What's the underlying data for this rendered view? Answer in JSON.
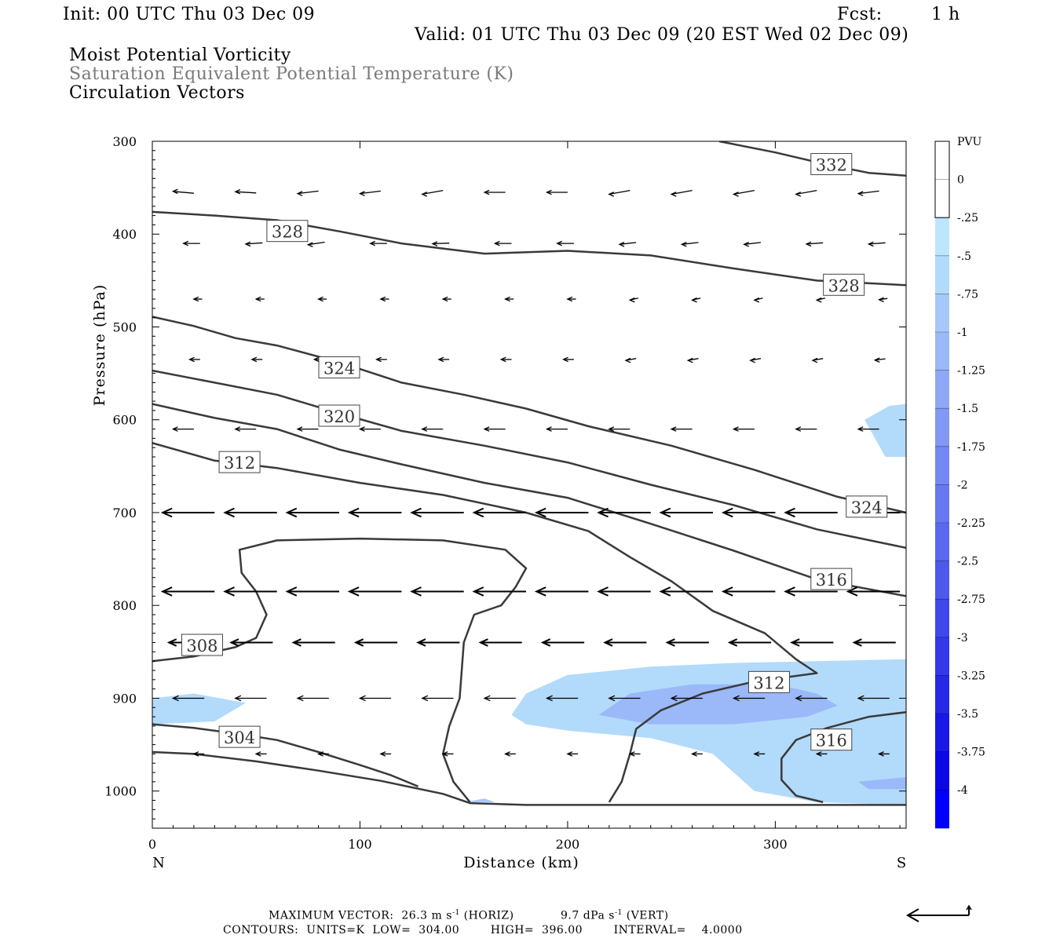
{
  "header": {
    "init": "Init: 00 UTC Thu 03 Dec 09",
    "fcst_label": "Fcst:",
    "fcst_value": "1 h",
    "valid": "Valid: 01 UTC Thu 03 Dec 09 (20 EST Wed 02 Dec 09)",
    "field1": "Moist Potential Vorticity",
    "field2": "Saturation Equivalent Potential Temperature (K)",
    "field3": "Circulation Vectors"
  },
  "footer": {
    "max_vector_label": "MAXIMUM VECTOR:",
    "horiz_value": "26.3 m s",
    "horiz_unit": "(HORIZ)",
    "vert_value": "9.7 dPa s",
    "vert_unit": "(VERT)",
    "exponent": "-1",
    "contours_line": "CONTOURS:  UNITS=K  LOW=  304.00        HIGH=  396.00        INTERVAL=    4.0000"
  },
  "colors": {
    "contour": "#3a3a3a",
    "vector": "#000000",
    "mpv_light": "#bde6fc",
    "mpv_medium": "#a6c8fa"
  },
  "chart_data": {
    "type": "contour",
    "xlabel": "Distance (km)",
    "ylabel": "Pressure (hPa)",
    "xlim": [
      0,
      363
    ],
    "ylim": [
      300,
      1040
    ],
    "y_log": false,
    "x_ticks": [
      0,
      100,
      200,
      300
    ],
    "y_ticks": [
      300,
      400,
      500,
      600,
      700,
      800,
      900,
      1000
    ],
    "x_end_labels": {
      "left": "N",
      "right": "S"
    },
    "colorbar": {
      "unit": "PVU",
      "levels": [
        "0",
        "-.25",
        "-.5",
        "-.75",
        "-1",
        "-1.25",
        "-1.5",
        "-1.75",
        "-2",
        "-2.25",
        "-2.5",
        "-2.75",
        "-3",
        "-3.25",
        "-3.5",
        "-3.75",
        "-4"
      ],
      "colors": [
        "#ffffff",
        "#ffffff",
        "#bde6fc",
        "#b2dafb",
        "#a6c8fa",
        "#9bb8f8",
        "#8ea8f6",
        "#8198f4",
        "#7488f2",
        "#6778f0",
        "#5a68ef",
        "#4d58ed",
        "#4048eb",
        "#3338e9",
        "#2628e8",
        "#1918e6",
        "#0c08e4",
        "#0000ff"
      ]
    },
    "contours": [
      {
        "value": "332",
        "label_at": [
          327,
          325
        ],
        "points": [
          [
            273,
            300
          ],
          [
            300,
            312
          ],
          [
            325,
            325
          ],
          [
            345,
            334
          ],
          [
            363,
            337
          ]
        ]
      },
      {
        "value": "328",
        "label_at": [
          65,
          397
        ],
        "points": [
          [
            0,
            376
          ],
          [
            30,
            380
          ],
          [
            60,
            385
          ],
          [
            90,
            397
          ],
          [
            120,
            410
          ],
          [
            160,
            421
          ],
          [
            200,
            418
          ],
          [
            240,
            423
          ],
          [
            280,
            437
          ],
          [
            320,
            450
          ],
          [
            363,
            455
          ]
        ]
      },
      {
        "value": "328",
        "label_at": [
          333,
          455
        ],
        "points": []
      },
      {
        "value": "324",
        "label_at": [
          90,
          544
        ],
        "points": [
          [
            0,
            489
          ],
          [
            20,
            499
          ],
          [
            40,
            512
          ],
          [
            60,
            520
          ],
          [
            90,
            538
          ],
          [
            120,
            560
          ],
          [
            150,
            573
          ],
          [
            180,
            588
          ],
          [
            210,
            607
          ],
          [
            250,
            628
          ],
          [
            290,
            654
          ],
          [
            330,
            683
          ],
          [
            363,
            700
          ]
        ]
      },
      {
        "value": "324",
        "label_at": [
          344,
          694
        ],
        "points": []
      },
      {
        "value": "320",
        "label_at": [
          90,
          596
        ],
        "points": [
          [
            0,
            547
          ],
          [
            30,
            560
          ],
          [
            60,
            573
          ],
          [
            90,
            593
          ],
          [
            120,
            612
          ],
          [
            160,
            628
          ],
          [
            200,
            646
          ],
          [
            240,
            670
          ],
          [
            280,
            692
          ],
          [
            320,
            718
          ],
          [
            363,
            738
          ]
        ]
      },
      {
        "value": "316",
        "label_at": [
          327,
          772
        ],
        "points": [
          [
            0,
            583
          ],
          [
            30,
            598
          ],
          [
            60,
            610
          ],
          [
            90,
            632
          ],
          [
            120,
            648
          ],
          [
            160,
            668
          ],
          [
            200,
            684
          ],
          [
            240,
            712
          ],
          [
            280,
            741
          ],
          [
            320,
            772
          ],
          [
            363,
            790
          ]
        ]
      },
      {
        "value": "312",
        "label_at": [
          42,
          646
        ],
        "points": [
          [
            0,
            625
          ],
          [
            30,
            644
          ],
          [
            60,
            652
          ],
          [
            100,
            668
          ],
          [
            140,
            681
          ],
          [
            180,
            700
          ],
          [
            210,
            720
          ],
          [
            230,
            748
          ],
          [
            250,
            774
          ],
          [
            270,
            806
          ],
          [
            295,
            830
          ],
          [
            310,
            858
          ],
          [
            320,
            873
          ],
          [
            290,
            882
          ],
          [
            265,
            895
          ],
          [
            245,
            913
          ],
          [
            233,
            933
          ],
          [
            230,
            960
          ],
          [
            226,
            990
          ],
          [
            220,
            1012
          ]
        ]
      },
      {
        "value": "312",
        "label_at": [
          297,
          883
        ],
        "points": []
      },
      {
        "value": "316",
        "label_at": [
          327,
          945
        ],
        "points": [
          [
            363,
            915
          ],
          [
            345,
            920
          ],
          [
            325,
            932
          ],
          [
            310,
            945
          ],
          [
            303,
            965
          ],
          [
            303,
            988
          ],
          [
            310,
            1005
          ],
          [
            323,
            1012
          ]
        ]
      },
      {
        "value": "308",
        "label_at": [
          24,
          843
        ],
        "points": [
          [
            0,
            860
          ],
          [
            20,
            855
          ],
          [
            40,
            845
          ],
          [
            50,
            835
          ],
          [
            55,
            810
          ],
          [
            50,
            785
          ],
          [
            43,
            765
          ],
          [
            42,
            740
          ],
          [
            60,
            730
          ],
          [
            100,
            728
          ],
          [
            140,
            730
          ],
          [
            170,
            740
          ],
          [
            180,
            760
          ],
          [
            175,
            780
          ],
          [
            168,
            800
          ],
          [
            155,
            810
          ],
          [
            150,
            840
          ],
          [
            148,
            900
          ],
          [
            143,
            930
          ],
          [
            140,
            960
          ],
          [
            145,
            990
          ],
          [
            153,
            1012
          ]
        ]
      },
      {
        "value": "304",
        "label_at": [
          42,
          942
        ],
        "points": [
          [
            0,
            928
          ],
          [
            20,
            932
          ],
          [
            40,
            938
          ],
          [
            60,
            945
          ],
          [
            80,
            958
          ],
          [
            100,
            972
          ],
          [
            115,
            983
          ],
          [
            128,
            995
          ]
        ]
      },
      {
        "value": "",
        "label_at": null,
        "points": [
          [
            0,
            958
          ],
          [
            20,
            960
          ],
          [
            50,
            968
          ],
          [
            80,
            978
          ],
          [
            110,
            989
          ],
          [
            140,
            1003
          ],
          [
            153,
            1013
          ],
          [
            180,
            1015
          ],
          [
            220,
            1015
          ],
          [
            280,
            1015
          ],
          [
            363,
            1015
          ]
        ]
      }
    ],
    "mpv_shading": [
      {
        "level": "-.5",
        "points": [
          [
            0,
            900
          ],
          [
            20,
            895
          ],
          [
            45,
            905
          ],
          [
            30,
            925
          ],
          [
            0,
            928
          ]
        ]
      },
      {
        "level": "-.5",
        "points": [
          [
            173,
            918
          ],
          [
            180,
            895
          ],
          [
            200,
            875
          ],
          [
            240,
            866
          ],
          [
            280,
            862
          ],
          [
            320,
            860
          ],
          [
            363,
            858
          ],
          [
            363,
            1015
          ],
          [
            320,
            1012
          ],
          [
            290,
            1000
          ],
          [
            270,
            960
          ],
          [
            240,
            943
          ],
          [
            200,
            935
          ],
          [
            180,
            928
          ]
        ]
      },
      {
        "level": "-1",
        "points": [
          [
            215,
            918
          ],
          [
            230,
            895
          ],
          [
            260,
            885
          ],
          [
            300,
            885
          ],
          [
            320,
            895
          ],
          [
            330,
            908
          ],
          [
            315,
            920
          ],
          [
            280,
            928
          ],
          [
            240,
            928
          ]
        ]
      },
      {
        "level": "-.5",
        "points": [
          [
            343,
            600
          ],
          [
            355,
            585
          ],
          [
            363,
            583
          ],
          [
            363,
            640
          ],
          [
            353,
            640
          ]
        ]
      },
      {
        "level": "-1",
        "points": [
          [
            340,
            990
          ],
          [
            363,
            985
          ],
          [
            363,
            998
          ],
          [
            345,
            998
          ]
        ]
      },
      {
        "level": "-.75",
        "points": [
          [
            150,
            1012
          ],
          [
            160,
            1008
          ],
          [
            165,
            1012
          ]
        ]
      }
    ],
    "vectors": [
      {
        "p": 355,
        "dx": -10,
        "xs": [
          10,
          40,
          70,
          100,
          130,
          160,
          190,
          220,
          250,
          280,
          310,
          340
        ],
        "slope": [
          -0.3,
          -0.2,
          0.4,
          0.4,
          0.6,
          0.0,
          0.0,
          0.6,
          0.6,
          0.6,
          0.6,
          0.4
        ]
      },
      {
        "p": 410,
        "dx": -8,
        "xs": [
          15,
          45,
          75,
          105,
          135,
          165,
          195,
          225,
          255,
          285,
          315,
          345
        ],
        "slope": [
          0.0,
          0.2,
          0.4,
          0.0,
          0.1,
          0.0,
          0.0,
          0.3,
          0.3,
          0.3,
          0.2,
          0.2
        ]
      },
      {
        "p": 470,
        "dx": -4,
        "xs": [
          20,
          50,
          80,
          110,
          140,
          170,
          200,
          230,
          260,
          290,
          320,
          350
        ],
        "slope": [
          0,
          0,
          0,
          0,
          0,
          0,
          0,
          0.3,
          0.3,
          0.3,
          0.3,
          0.2
        ]
      },
      {
        "p": 535,
        "dx": -5,
        "xs": [
          18,
          48,
          78,
          108,
          138,
          168,
          198,
          228,
          258,
          288,
          318,
          348
        ],
        "slope": [
          0,
          0,
          0,
          0,
          0,
          0,
          0,
          0.3,
          0.3,
          0.3,
          0.3,
          0.2
        ]
      },
      {
        "p": 610,
        "dx": -10,
        "xs": [
          10,
          40,
          70,
          100,
          130,
          160,
          190,
          220,
          250,
          280,
          310,
          340
        ],
        "slope": [
          0,
          0,
          0,
          0,
          0,
          0,
          0,
          0,
          0,
          0,
          0,
          0
        ]
      },
      {
        "p": 700,
        "dx": -25,
        "xs": [
          5,
          35,
          65,
          95,
          125,
          155,
          185,
          215,
          245,
          275,
          305,
          335
        ],
        "slope": [
          0,
          0,
          0,
          0,
          0,
          0,
          0,
          0,
          0,
          0,
          0,
          0
        ]
      },
      {
        "p": 785,
        "dx": -25,
        "xs": [
          5,
          35,
          65,
          95,
          125,
          155,
          185,
          215,
          245,
          275,
          305,
          335
        ],
        "slope": [
          0,
          0,
          0,
          0,
          0,
          0,
          0,
          0,
          0,
          0,
          0,
          0
        ]
      },
      {
        "p": 840,
        "dx": -20,
        "xs": [
          8,
          38,
          68,
          98,
          128,
          158,
          188,
          218,
          248,
          278,
          308,
          338
        ],
        "slope": [
          0,
          0,
          0,
          0,
          0,
          0,
          0,
          0,
          0,
          0,
          0,
          0
        ]
      },
      {
        "p": 900,
        "dx": -15,
        "xs": [
          10,
          40,
          70,
          100,
          130,
          160,
          190,
          220,
          250,
          280,
          310,
          340
        ],
        "slope": [
          0,
          0,
          0,
          0,
          0,
          0,
          0,
          0,
          0,
          0,
          0,
          0
        ]
      },
      {
        "p": 960,
        "dx": -5,
        "xs": [
          20,
          50,
          80,
          110,
          140,
          170,
          200,
          230,
          260,
          290,
          320,
          350
        ],
        "slope": [
          0,
          0,
          0,
          0,
          0,
          0,
          0,
          0,
          0,
          0,
          0,
          0
        ]
      }
    ]
  }
}
